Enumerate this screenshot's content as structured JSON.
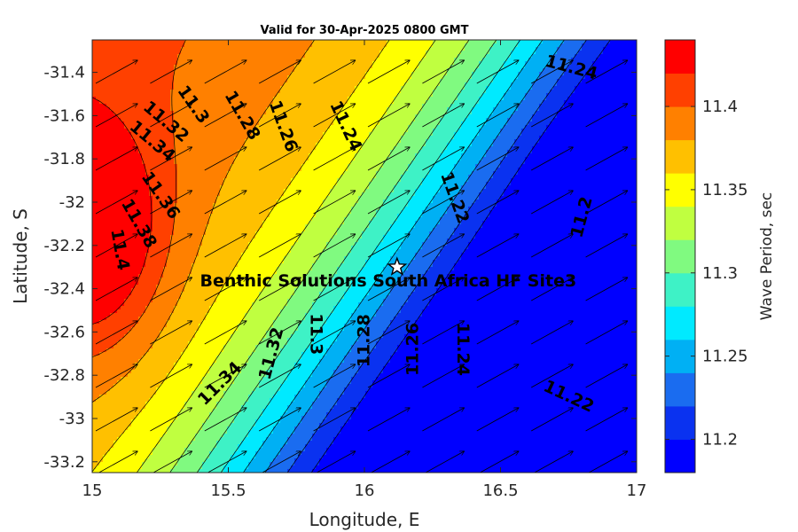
{
  "chart_data": {
    "type": "filled-contour",
    "title": "Valid for 30-Apr-2025 0800 GMT",
    "xlabel": "Longitude, E",
    "ylabel": "Latitude, S",
    "xlim": [
      15,
      17
    ],
    "ylim": [
      -33.25,
      -31.25
    ],
    "x_ticks": [
      15,
      15.5,
      16,
      16.5,
      17
    ],
    "x_tick_labels": [
      "15",
      "15.5",
      "16",
      "16.5",
      "17"
    ],
    "y_ticks": [
      -31.4,
      -31.6,
      -31.8,
      -32,
      -32.2,
      -32.4,
      -32.6,
      -32.8,
      -33,
      -33.2
    ],
    "y_tick_labels": [
      "-31.4",
      "-31.6",
      "-31.8",
      "-32",
      "-32.2",
      "-32.4",
      "-32.6",
      "-32.8",
      "-33",
      "-33.2"
    ],
    "colorbar": {
      "label": "Wave Period, sec",
      "range": [
        11.18,
        11.44
      ],
      "ticks": [
        11.2,
        11.25,
        11.3,
        11.35,
        11.4
      ],
      "tick_labels": [
        "11.2",
        "11.25",
        "11.3",
        "11.35",
        "11.4"
      ],
      "levels": [
        11.18,
        11.2,
        11.22,
        11.24,
        11.26,
        11.28,
        11.3,
        11.32,
        11.34,
        11.36,
        11.38,
        11.4,
        11.42,
        11.44
      ],
      "colors": [
        "#0000ff",
        "#0a32f0",
        "#1a6cf0",
        "#00b0f4",
        "#00eaff",
        "#3ef2c6",
        "#80fa80",
        "#c0ff40",
        "#ffff00",
        "#ffc000",
        "#ff8000",
        "#ff4000",
        "#ff0000"
      ]
    },
    "contour_labels": [
      {
        "text": "11.4",
        "lon": 15.1,
        "lat": -32.22,
        "angle": 80
      },
      {
        "text": "11.38",
        "lon": 15.17,
        "lat": -32.1,
        "angle": 60
      },
      {
        "text": "11.36",
        "lon": 15.25,
        "lat": -31.97,
        "angle": 55
      },
      {
        "text": "11.34",
        "lon": 15.22,
        "lat": -31.72,
        "angle": 40
      },
      {
        "text": "11.32",
        "lon": 15.27,
        "lat": -31.63,
        "angle": 40
      },
      {
        "text": "11.3",
        "lon": 15.37,
        "lat": -31.55,
        "angle": 55
      },
      {
        "text": "11.28",
        "lon": 15.55,
        "lat": -31.6,
        "angle": 60
      },
      {
        "text": "11.26",
        "lon": 15.7,
        "lat": -31.65,
        "angle": 70
      },
      {
        "text": "11.24",
        "lon": 15.93,
        "lat": -31.65,
        "angle": 65
      },
      {
        "text": "11.24",
        "lon": 16.76,
        "lat": -31.38,
        "angle": 15
      },
      {
        "text": "11.22",
        "lon": 16.33,
        "lat": -31.98,
        "angle": 70
      },
      {
        "text": "11.2",
        "lon": 16.8,
        "lat": -32.07,
        "angle": -75
      },
      {
        "text": "11.34",
        "lon": 15.47,
        "lat": -32.84,
        "angle": -45
      },
      {
        "text": "11.32",
        "lon": 15.66,
        "lat": -32.7,
        "angle": -75
      },
      {
        "text": "11.3",
        "lon": 15.82,
        "lat": -32.61,
        "angle": 90
      },
      {
        "text": "11.28",
        "lon": 16.0,
        "lat": -32.64,
        "angle": -90
      },
      {
        "text": "11.26",
        "lon": 16.18,
        "lat": -32.68,
        "angle": -90
      },
      {
        "text": "11.24",
        "lon": 16.36,
        "lat": -32.68,
        "angle": 90
      },
      {
        "text": "11.22",
        "lon": 16.75,
        "lat": -32.9,
        "angle": 25
      }
    ],
    "site": {
      "label": "Benthic Solutions South Africa HF Site3",
      "lon": 16.12,
      "lat": -32.3,
      "marker": "star"
    },
    "vectors": {
      "description": "wave direction arrows pointing to the north-east",
      "count": "10x10 grid"
    }
  }
}
